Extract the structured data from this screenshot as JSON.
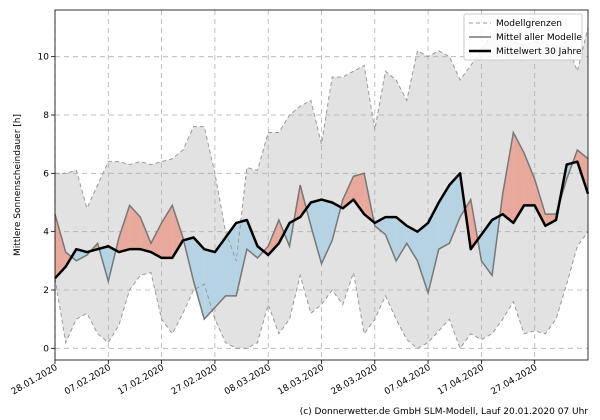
{
  "chart_data": {
    "type": "ensemble",
    "y_label": "Mittlere Sonnenscheindauer [h]",
    "footer": "(c) Donnerwetter.de GmbH SLM-Modell, Lauf 20.01.2020 07 Uhr",
    "x": [
      "28.01.2020",
      "30.01.2020",
      "01.02.2020",
      "03.02.2020",
      "05.02.2020",
      "07.02.2020",
      "09.02.2020",
      "11.02.2020",
      "13.02.2020",
      "15.02.2020",
      "17.02.2020",
      "19.02.2020",
      "21.02.2020",
      "23.02.2020",
      "25.02.2020",
      "27.02.2020",
      "29.02.2020",
      "02.03.2020",
      "04.03.2020",
      "06.03.2020",
      "08.03.2020",
      "10.03.2020",
      "12.03.2020",
      "14.03.2020",
      "16.03.2020",
      "18.03.2020",
      "20.03.2020",
      "22.03.2020",
      "24.03.2020",
      "26.03.2020",
      "28.03.2020",
      "30.03.2020",
      "01.04.2020",
      "03.04.2020",
      "05.04.2020",
      "07.04.2020",
      "09.04.2020",
      "11.04.2020",
      "13.04.2020",
      "15.04.2020",
      "17.04.2020",
      "19.04.2020",
      "21.04.2020",
      "23.04.2020",
      "25.04.2020",
      "27.04.2020",
      "29.04.2020",
      "01.05.2020",
      "03.05.2020",
      "05.05.2020",
      "07.05.2020"
    ],
    "series": [
      {
        "name": "Modellgrenzen",
        "color": "#999999",
        "fill": "#e2e2e2",
        "values": [
          6.0,
          6.0,
          6.1,
          4.8,
          5.6,
          6.4,
          6.4,
          6.3,
          6.4,
          6.3,
          6.4,
          6.5,
          6.8,
          7.6,
          7.6,
          6.0,
          4.0,
          3.0,
          6.2,
          6.1,
          7.4,
          7.4,
          8.0,
          8.3,
          8.5,
          7.0,
          9.3,
          9.3,
          9.5,
          9.7,
          7.5,
          9.5,
          9.2,
          8.5,
          10.2,
          10.0,
          10.2,
          10.0,
          9.2,
          9.7,
          10.2,
          10.8,
          11.0,
          10.5,
          10.4,
          10.5,
          10.5,
          10.2,
          10.5,
          9.5,
          11.0
        ],
        "lower": [
          2.4,
          0.2,
          1.0,
          1.2,
          0.5,
          0.2,
          0.8,
          2.0,
          2.5,
          2.6,
          1.0,
          0.5,
          1.2,
          2.0,
          2.2,
          1.0,
          0.2,
          0.0,
          0.0,
          0.2,
          1.5,
          0.5,
          1.0,
          2.5,
          1.2,
          1.5,
          2.0,
          1.5,
          2.6,
          0.5,
          1.0,
          1.8,
          1.0,
          0.3,
          0.0,
          0.2,
          0.6,
          1.0,
          0.0,
          0.5,
          0.3,
          0.5,
          1.0,
          1.6,
          0.5,
          0.6,
          0.5,
          1.0,
          2.2,
          3.5,
          4.0
        ]
      },
      {
        "name": "Mittel aller Modelle",
        "color": "#777777",
        "values": [
          4.6,
          3.3,
          3.0,
          3.2,
          3.6,
          2.3,
          3.8,
          4.9,
          4.5,
          3.6,
          4.3,
          4.9,
          3.8,
          2.3,
          1.0,
          1.4,
          1.8,
          1.8,
          3.4,
          3.1,
          3.5,
          4.4,
          3.5,
          5.6,
          4.2,
          2.9,
          3.7,
          5.1,
          5.9,
          6.0,
          4.2,
          3.9,
          3.0,
          3.6,
          3.0,
          1.9,
          3.4,
          3.6,
          4.5,
          5.1,
          3.0,
          2.5,
          5.3,
          7.4,
          6.7,
          5.8,
          4.6,
          4.6,
          5.8,
          6.8,
          6.5
        ]
      },
      {
        "name": "Mittelwert 30 Jahre",
        "color": "#000000",
        "values": [
          2.4,
          2.8,
          3.4,
          3.3,
          3.4,
          3.5,
          3.3,
          3.4,
          3.4,
          3.3,
          3.1,
          3.1,
          3.7,
          3.8,
          3.4,
          3.3,
          3.8,
          4.3,
          4.4,
          3.5,
          3.2,
          3.6,
          4.3,
          4.5,
          5.0,
          5.1,
          5.0,
          4.8,
          5.1,
          4.6,
          4.3,
          4.5,
          4.5,
          4.2,
          4.0,
          4.3,
          5.0,
          5.6,
          6.0,
          3.4,
          3.9,
          4.4,
          4.6,
          4.3,
          4.9,
          4.9,
          4.2,
          4.4,
          6.3,
          6.4,
          5.3
        ]
      }
    ],
    "above_color": "#e8a99c",
    "below_color": "#b6d3e4",
    "xlim": [
      "28.01.2020",
      "07.05.2020"
    ],
    "xticks": [
      "28.01.2020",
      "07.02.2020",
      "17.02.2020",
      "27.02.2020",
      "08.03.2020",
      "18.03.2020",
      "28.03.2020",
      "07.04.2020",
      "17.04.2020",
      "27.04.2020"
    ],
    "ylim": [
      -0.4,
      11.6
    ],
    "yticks": [
      0,
      2,
      4,
      6,
      8,
      10
    ],
    "grid": true,
    "legend": "upper right"
  }
}
